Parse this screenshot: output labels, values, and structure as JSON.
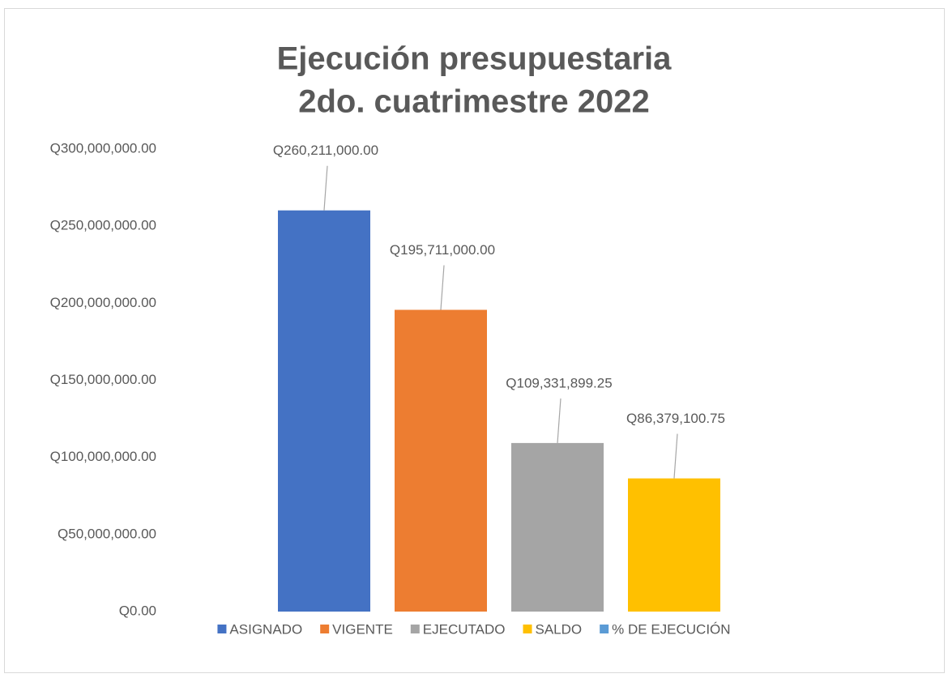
{
  "chart_data": {
    "type": "bar",
    "title": [
      "Ejecución presupuestaria",
      "2do. cuatrimestre 2022"
    ],
    "series": [
      {
        "name": "ASIGNADO",
        "color": "#4472c4",
        "values": [
          260211000.0
        ],
        "value_labels": [
          "Q260,211,000.00"
        ]
      },
      {
        "name": "VIGENTE",
        "color": "#ed7d31",
        "values": [
          195711000.0
        ],
        "value_labels": [
          "Q195,711,000.00"
        ]
      },
      {
        "name": "EJECUTADO",
        "color": "#a5a5a5",
        "values": [
          109331899.25
        ],
        "value_labels": [
          "Q109,331,899.25"
        ]
      },
      {
        "name": "SALDO",
        "color": "#ffc000",
        "values": [
          86379100.75
        ],
        "value_labels": [
          "Q86,379,100.75"
        ]
      },
      {
        "name": "% DE EJECUCIÓN",
        "color": "#5b9bd5",
        "values": [
          0
        ]
      }
    ],
    "ylim": [
      0,
      300000000
    ],
    "yticks": [
      {
        "value": 0,
        "label": "Q0.00"
      },
      {
        "value": 50000000,
        "label": "Q50,000,000.00"
      },
      {
        "value": 100000000,
        "label": "Q100,000,000.00"
      },
      {
        "value": 150000000,
        "label": "Q150,000,000.00"
      },
      {
        "value": 200000000,
        "label": "Q200,000,000.00"
      },
      {
        "value": 250000000,
        "label": "Q250,000,000.00"
      },
      {
        "value": 300000000,
        "label": "Q300,000,000.00"
      }
    ]
  }
}
